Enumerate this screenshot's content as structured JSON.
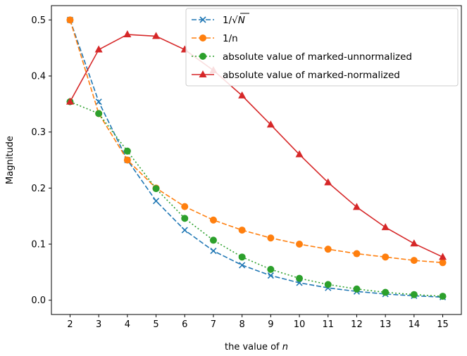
{
  "chart_data": {
    "type": "line",
    "xlabel": "the value of n",
    "ylabel": "Magnitude",
    "xlim": [
      1.35,
      15.65
    ],
    "ylim": [
      -0.0255,
      0.5255
    ],
    "xticks": [
      2,
      3,
      4,
      5,
      6,
      7,
      8,
      9,
      10,
      11,
      12,
      13,
      14,
      15
    ],
    "yticks": [
      0.0,
      0.1,
      0.2,
      0.3,
      0.4,
      0.5
    ],
    "grid": false,
    "legend_position": "top-right",
    "x": [
      2,
      3,
      4,
      5,
      6,
      7,
      8,
      9,
      10,
      11,
      12,
      13,
      14,
      15
    ],
    "series": [
      {
        "name": "1/√N",
        "color": "#1f77b4",
        "linestyle": "dashed",
        "marker": "x",
        "values": [
          0.5,
          0.354,
          0.25,
          0.177,
          0.125,
          0.088,
          0.0625,
          0.044,
          0.031,
          0.022,
          0.0156,
          0.011,
          0.0078,
          0.0055
        ]
      },
      {
        "name": "1/n",
        "color": "#ff7f0e",
        "linestyle": "dashed",
        "marker": "circle",
        "values": [
          0.5,
          0.333,
          0.25,
          0.2,
          0.167,
          0.143,
          0.125,
          0.111,
          0.1,
          0.091,
          0.083,
          0.077,
          0.071,
          0.067
        ]
      },
      {
        "name": "absolute value of marked-unnormalized",
        "color": "#2ca02c",
        "linestyle": "dotted",
        "marker": "circle",
        "values": [
          0.354,
          0.333,
          0.266,
          0.199,
          0.146,
          0.107,
          0.077,
          0.055,
          0.039,
          0.028,
          0.02,
          0.014,
          0.01,
          0.007
        ]
      },
      {
        "name": "absolute value of marked-normalized",
        "color": "#d62728",
        "linestyle": "solid",
        "marker": "triangle",
        "values": [
          0.354,
          0.447,
          0.474,
          0.471,
          0.447,
          0.41,
          0.365,
          0.313,
          0.26,
          0.21,
          0.166,
          0.13,
          0.101,
          0.077
        ]
      }
    ]
  }
}
